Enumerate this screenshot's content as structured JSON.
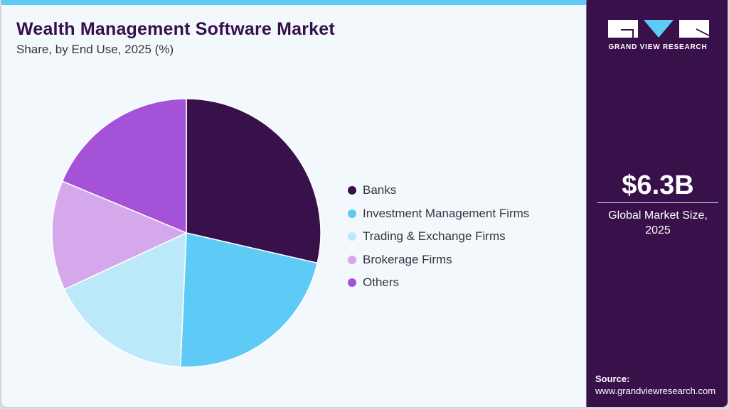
{
  "header": {
    "title": "Wealth Management Software Market",
    "subtitle": "Share, by End Use, 2025 (%)"
  },
  "sidebar": {
    "brand": "GRAND VIEW RESEARCH",
    "market_value": "$6.3B",
    "market_label_line1": "Global Market Size,",
    "market_label_line2": "2025",
    "source_label": "Source:",
    "source_url": "www.grandviewresearch.com"
  },
  "colors": {
    "accent_bar": "#5ecaf6",
    "sidebar_bg": "#38114b",
    "title": "#35104a",
    "background": "#f3f8fc"
  },
  "legend": [
    {
      "label": "Banks",
      "color": "#38114b"
    },
    {
      "label": "Investment Management Firms",
      "color": "#5ecaf6"
    },
    {
      "label": "Trading & Exchange Firms",
      "color": "#bce9f9"
    },
    {
      "label": "Brokerage Firms",
      "color": "#d4a8ea"
    },
    {
      "label": "Others",
      "color": "#a453d8"
    }
  ],
  "chart_data": {
    "type": "pie",
    "title": "Wealth Management Software Market",
    "subtitle": "Share, by End Use, 2025 (%)",
    "categories": [
      "Banks",
      "Investment Management Firms",
      "Trading & Exchange Firms",
      "Brokerage Firms",
      "Others"
    ],
    "values": [
      28.6,
      22.1,
      17.4,
      13.2,
      18.7
    ],
    "colors": [
      "#38114b",
      "#5ecaf6",
      "#bce9f9",
      "#d4a8ea",
      "#a453d8"
    ],
    "start_angle_deg": 0,
    "direction": "clockwise",
    "legend_position": "right",
    "data_labels": false
  }
}
